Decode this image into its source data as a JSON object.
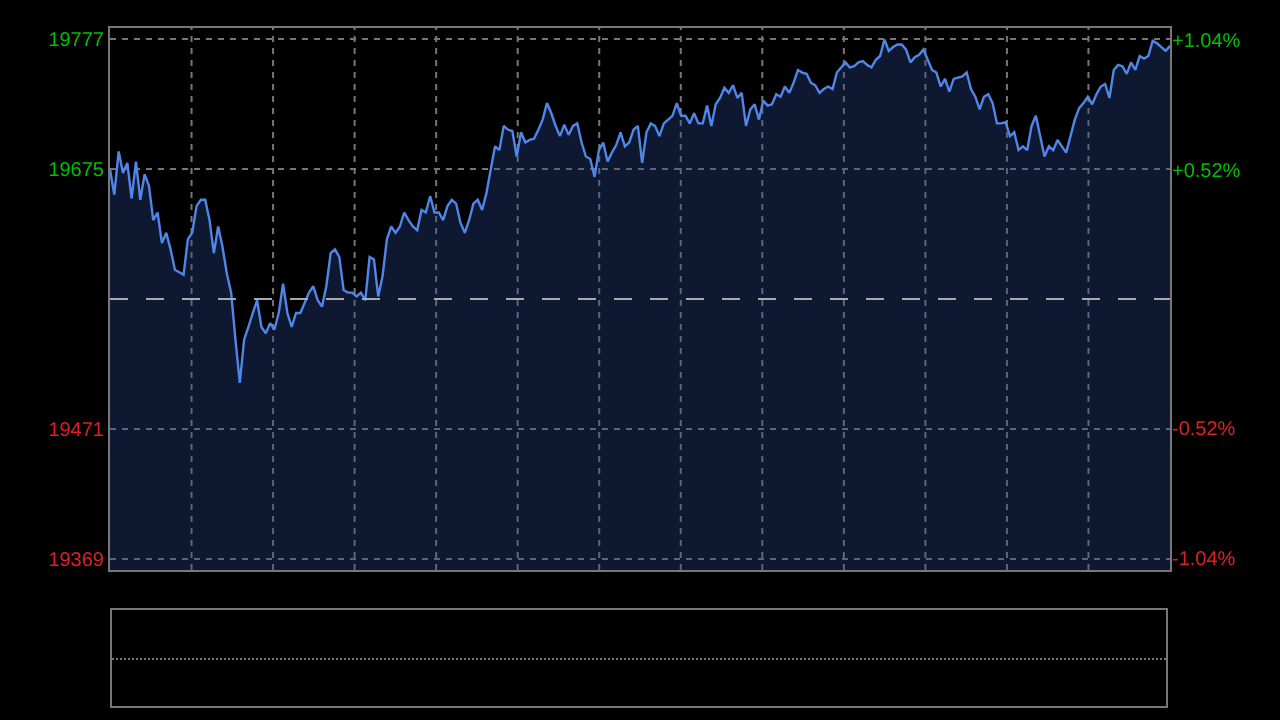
{
  "chart_data": {
    "type": "area",
    "color": "#4f86e8",
    "categories": [
      null,
      null,
      null,
      null,
      null,
      null,
      null,
      null,
      null,
      null,
      null,
      null,
      null,
      null,
      null,
      null,
      null,
      null,
      null,
      null,
      null,
      null,
      null,
      null,
      null,
      null,
      null,
      null,
      null,
      null,
      null,
      null,
      null,
      null,
      null,
      null,
      null,
      null,
      null,
      null,
      null,
      null,
      null,
      null,
      null,
      null,
      null,
      null,
      null,
      null,
      null,
      null,
      null,
      null,
      null,
      null,
      null,
      null,
      null,
      null,
      null,
      null,
      null,
      null,
      null,
      null,
      null,
      null,
      null,
      null,
      null,
      null,
      null,
      null,
      null,
      null,
      null,
      null,
      null,
      null,
      null,
      null,
      null,
      null,
      null,
      null,
      null,
      null,
      null,
      null,
      null,
      null,
      null,
      null,
      null,
      null,
      null,
      null,
      null,
      null,
      null,
      null,
      null,
      null,
      null,
      null,
      null,
      null,
      null,
      null,
      null,
      null,
      null,
      null,
      null,
      null,
      null,
      null,
      null,
      null,
      null,
      null,
      null,
      null,
      null,
      null,
      null,
      null,
      null,
      null,
      null,
      null,
      null,
      null,
      null,
      null,
      null,
      null,
      null,
      null,
      null,
      null,
      null,
      null,
      null,
      null,
      null,
      null,
      null,
      null,
      null,
      null,
      null,
      null,
      null,
      null,
      null,
      null,
      null,
      null,
      null,
      null,
      null,
      null,
      null,
      null,
      null,
      null,
      null,
      null,
      null,
      null,
      null,
      null,
      null,
      null,
      null,
      null,
      null,
      null,
      null,
      null,
      null,
      null,
      null,
      null,
      null,
      null,
      null,
      null,
      null,
      null,
      null,
      null,
      null,
      null,
      null,
      null,
      null,
      null,
      null,
      null,
      null,
      null,
      null,
      null,
      null,
      null,
      null,
      null,
      null,
      null,
      null,
      null,
      null,
      null,
      null,
      null,
      null,
      null,
      null,
      null,
      null,
      null,
      null,
      null,
      null,
      null,
      null,
      null,
      null,
      null,
      null,
      null,
      null,
      null,
      null,
      null,
      null,
      null,
      null,
      null,
      null,
      null,
      null,
      null
    ],
    "values": [
      19675,
      19655,
      19689,
      19672,
      19680,
      19652,
      19681,
      19651,
      19671,
      19662,
      19635,
      19641,
      19617,
      19625,
      19612,
      19596,
      19594,
      19592,
      19620,
      19625,
      19646,
      19651,
      19651,
      19635,
      19609,
      19630,
      19614,
      19593,
      19578,
      19541,
      19507,
      19541,
      19551,
      19562,
      19572,
      19551,
      19546,
      19554,
      19549,
      19562,
      19585,
      19562,
      19551,
      19562,
      19562,
      19570,
      19578,
      19583,
      19572,
      19567,
      19583,
      19609,
      19612,
      19606,
      19580,
      19578,
      19578,
      19575,
      19578,
      19572,
      19606,
      19604,
      19575,
      19591,
      19620,
      19630,
      19625,
      19630,
      19641,
      19635,
      19630,
      19627,
      19643,
      19641,
      19654,
      19641,
      19641,
      19635,
      19646,
      19651,
      19648,
      19633,
      19625,
      19635,
      19648,
      19651,
      19643,
      19656,
      19675,
      19693,
      19690,
      19709,
      19706,
      19705,
      19685,
      19704,
      19696,
      19698,
      19699,
      19706,
      19714,
      19727,
      19719,
      19709,
      19701,
      19710,
      19702,
      19709,
      19711,
      19696,
      19685,
      19683,
      19669,
      19690,
      19696,
      19681,
      19688,
      19694,
      19704,
      19693,
      19696,
      19706,
      19709,
      19680,
      19704,
      19711,
      19709,
      19701,
      19711,
      19714,
      19717,
      19727,
      19717,
      19717,
      19711,
      19719,
      19711,
      19711,
      19725,
      19709,
      19726,
      19731,
      19739,
      19735,
      19741,
      19731,
      19735,
      19709,
      19722,
      19726,
      19714,
      19729,
      19725,
      19726,
      19734,
      19732,
      19740,
      19735,
      19743,
      19753,
      19751,
      19750,
      19743,
      19741,
      19735,
      19738,
      19740,
      19738,
      19751,
      19755,
      19759,
      19755,
      19756,
      19759,
      19760,
      19757,
      19755,
      19761,
      19764,
      19777,
      19768,
      19771,
      19773,
      19773,
      19769,
      19759,
      19763,
      19765,
      19769,
      19761,
      19753,
      19751,
      19740,
      19746,
      19736,
      19746,
      19747,
      19748,
      19751,
      19738,
      19732,
      19722,
      19732,
      19734,
      19727,
      19711,
      19711,
      19712,
      19701,
      19704,
      19690,
      19693,
      19690,
      19709,
      19717,
      19701,
      19685,
      19693,
      19690,
      19698,
      19693,
      19688,
      19701,
      19714,
      19723,
      19727,
      19732,
      19726,
      19734,
      19740,
      19742,
      19731,
      19753,
      19757,
      19756,
      19750,
      19759,
      19753,
      19764,
      19762,
      19764,
      19776,
      19774,
      19771,
      19768,
      19772
    ],
    "ylim": [
      19360,
      19786
    ],
    "yticks": [
      19369,
      19471,
      19675,
      19777
    ],
    "y2lim": [
      -1.09,
      1.09
    ],
    "y2ticks": [
      {
        "value": -1.04,
        "label": "-1.04%"
      },
      {
        "value": -0.52,
        "label": "-0.52%"
      },
      {
        "value": 0.52,
        "label": "+0.52%"
      },
      {
        "value": 1.04,
        "label": "+1.04%"
      }
    ],
    "ref_lines": [
      {
        "axis": "y",
        "value": 19573,
        "line_style": "dashed",
        "color": "#aaaaaa"
      }
    ],
    "grid": true,
    "legend": false
  }
}
